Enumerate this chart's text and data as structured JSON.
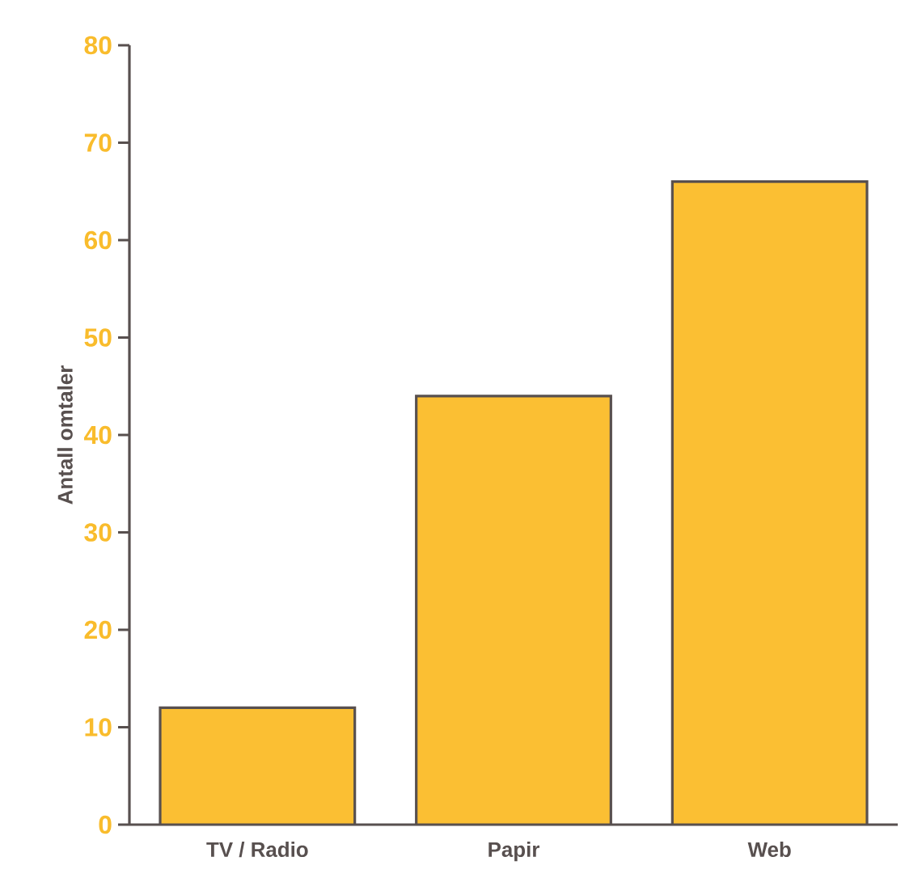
{
  "chart_data": {
    "type": "bar",
    "ylabel": "Antall omtaler",
    "categories": [
      "TV / Radio",
      "Papir",
      "Web"
    ],
    "values": [
      12,
      44,
      66
    ],
    "color": "#fbbf33",
    "ylim": [
      0,
      80
    ],
    "yticks": [
      0,
      10,
      20,
      30,
      40,
      50,
      60,
      70,
      80
    ],
    "grid": false
  }
}
